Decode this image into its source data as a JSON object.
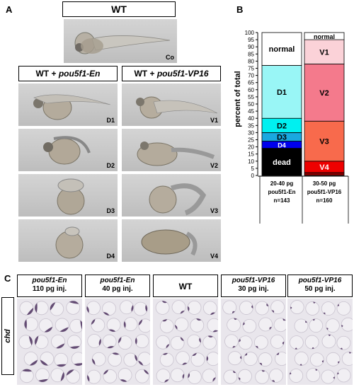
{
  "panel_a": {
    "label": "A",
    "wt_title": "WT",
    "wt_tag": "Co",
    "left_header_prefix": "WT + ",
    "left_header_gene": "pou5f1-En",
    "right_header_prefix": "WT + ",
    "right_header_gene": "pou5f1-VP16",
    "left_tags": [
      "D1",
      "D2",
      "D3",
      "D4"
    ],
    "right_tags": [
      "V1",
      "V2",
      "V3",
      "V4"
    ]
  },
  "panel_b": {
    "label": "B"
  },
  "panel_c": {
    "label": "C",
    "row_label": "chd",
    "groups": [
      {
        "gene": "pou5f1-En",
        "dose": "110 pg inj."
      },
      {
        "gene": "pou5f1-En",
        "dose": "40 pg inj."
      },
      {
        "gene": "",
        "dose": "WT"
      },
      {
        "gene": "pou5f1-VP16",
        "dose": "30 pg inj."
      },
      {
        "gene": "pou5f1-VP16",
        "dose": "50 pg inj."
      }
    ]
  },
  "chart_data": {
    "type": "bar",
    "stacked": true,
    "ylabel": "percent of total",
    "ylim": [
      0,
      100
    ],
    "yticks": [
      0,
      5,
      10,
      15,
      20,
      25,
      30,
      35,
      40,
      45,
      50,
      55,
      60,
      65,
      70,
      75,
      80,
      85,
      90,
      95,
      100
    ],
    "bars": [
      {
        "label_lines": [
          "20-40 pg",
          "pou5f1-En",
          "n=143"
        ],
        "segments": [
          {
            "name": "dead",
            "value": 19,
            "color": "#000000",
            "text_color": "#ffffff"
          },
          {
            "name": "D4",
            "value": 5,
            "color": "#0000ee",
            "text_color": "#ffffff"
          },
          {
            "name": "D3",
            "value": 6,
            "color": "#19a8e0",
            "text_color": "#000000"
          },
          {
            "name": "D2",
            "value": 10,
            "color": "#00f0f0",
            "text_color": "#000000"
          },
          {
            "name": "D1",
            "value": 37,
            "color": "#99f6f6",
            "text_color": "#000000"
          },
          {
            "name": "normal",
            "value": 23,
            "color": "#ffffff",
            "text_color": "#000000"
          }
        ]
      },
      {
        "label_lines": [
          "30-50 pg",
          "pou5f1-VP16",
          "n=160"
        ],
        "segments": [
          {
            "name": "",
            "value": 2,
            "color": "#8a0000",
            "text_color": "#ffffff"
          },
          {
            "name": "V4",
            "value": 8,
            "color": "#ee0000",
            "text_color": "#ffffff"
          },
          {
            "name": "V3",
            "value": 28,
            "color": "#f86a4c",
            "text_color": "#000000"
          },
          {
            "name": "V2",
            "value": 40,
            "color": "#f47a8c",
            "text_color": "#000000"
          },
          {
            "name": "V1",
            "value": 17,
            "color": "#fbd2d8",
            "text_color": "#000000"
          },
          {
            "name": "normal",
            "value": 5,
            "color": "#ffffff",
            "text_color": "#000000"
          }
        ]
      }
    ]
  }
}
